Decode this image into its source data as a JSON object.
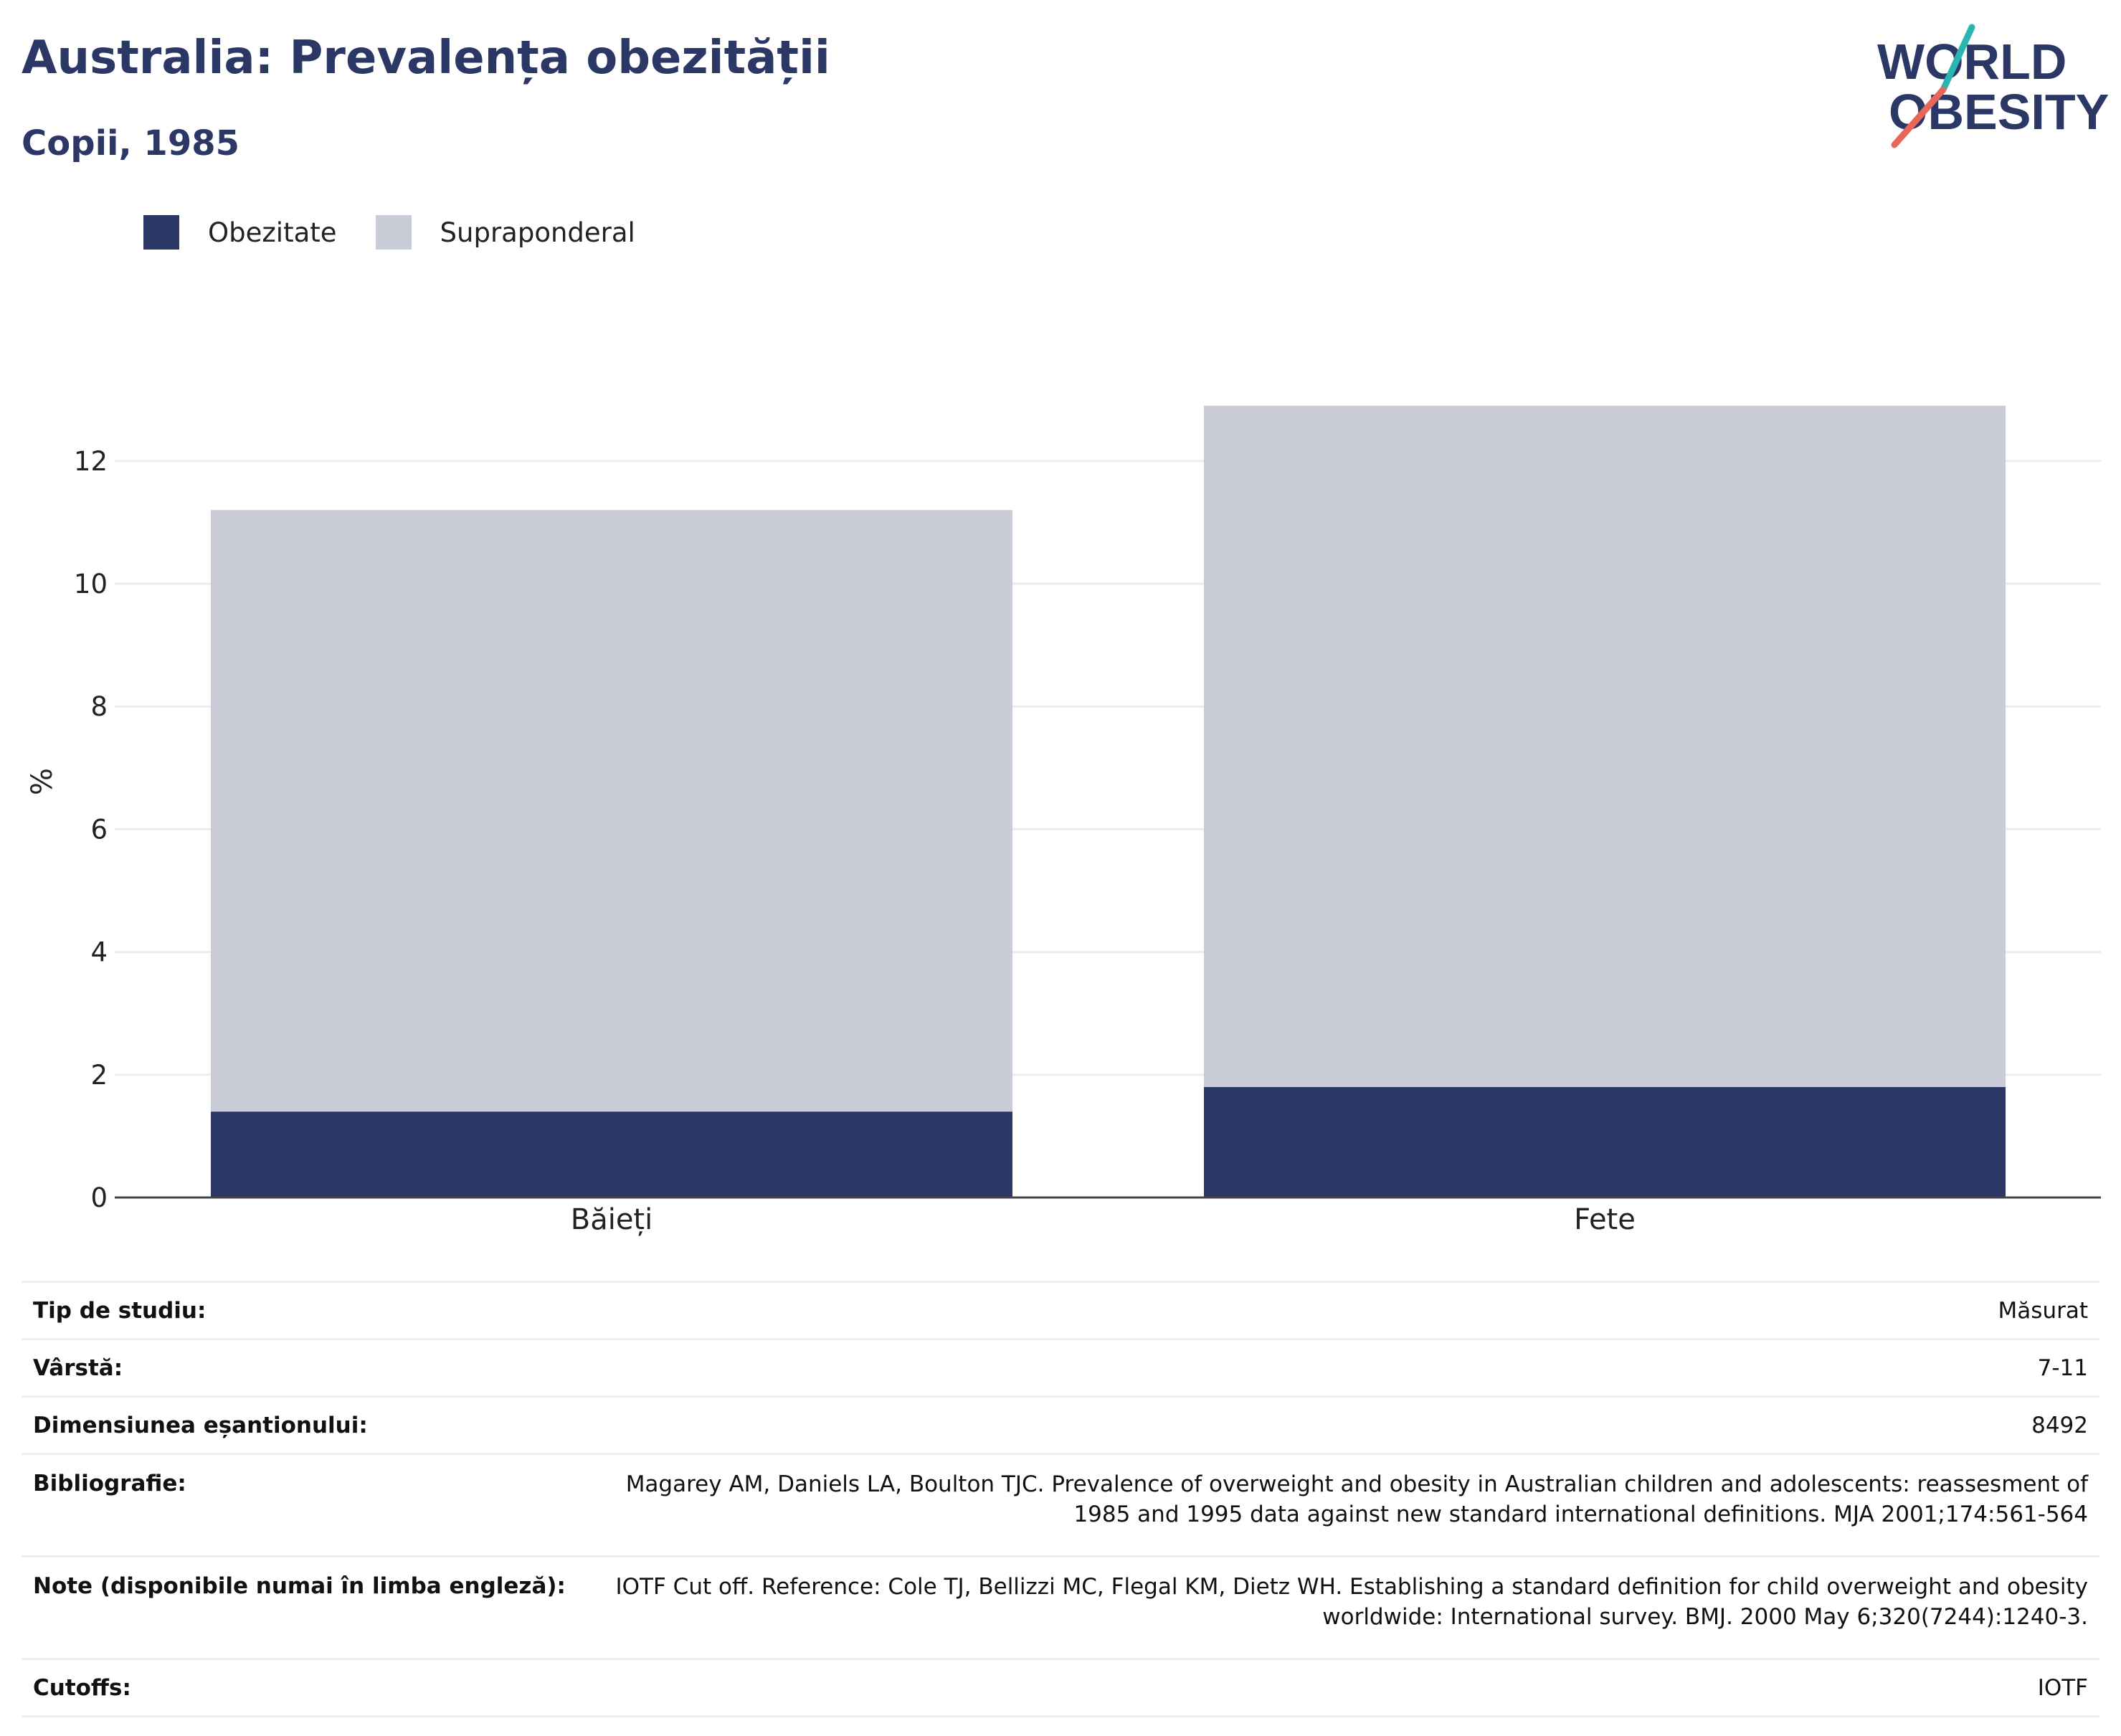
{
  "header": {
    "title": "Australia: Prevalența obezității",
    "subtitle": "Copii, 1985"
  },
  "logo": {
    "line1": "WORLD",
    "line2": "OBESITY",
    "accent_colors": [
      "#2bb5b2",
      "#e8665a"
    ],
    "text_color": "#2b3866"
  },
  "chart_data": {
    "type": "bar",
    "stacked": true,
    "categories": [
      "Băieți",
      "Fete"
    ],
    "series": [
      {
        "name": "Obezitate",
        "color": "#2b3866",
        "values": [
          1.4,
          1.8
        ]
      },
      {
        "name": "Supraponderal",
        "color": "#c9cbd6",
        "values": [
          9.8,
          11.1
        ]
      }
    ],
    "ylabel": "%",
    "ylim": [
      0,
      14
    ],
    "yticks": [
      0,
      2,
      4,
      6,
      8,
      10,
      12
    ],
    "grid": true,
    "legend_position": "top-left"
  },
  "info": {
    "rows": [
      {
        "label": "Tip de studiu:",
        "value": "Măsurat"
      },
      {
        "label": "Vârstă:",
        "value": "7-11"
      },
      {
        "label": "Dimensiunea eșantionului:",
        "value": "8492"
      },
      {
        "label": "Bibliografie:",
        "value": "Magarey AM, Daniels LA, Boulton TJC. Prevalence of overweight and obesity in Australian children and adolescents: reassesment of 1985 and 1995 data against new standard international definitions. MJA 2001;174:561-564"
      },
      {
        "label": "Note (disponibile numai în limba engleză):",
        "value": "IOTF Cut off. Reference: Cole TJ, Bellizzi MC, Flegal KM, Dietz WH. Establishing a standard definition for child overweight and obesity worldwide: International survey. BMJ. 2000 May 6;320(7244):1240-3."
      },
      {
        "label": "Cutoffs:",
        "value": "IOTF"
      }
    ]
  }
}
